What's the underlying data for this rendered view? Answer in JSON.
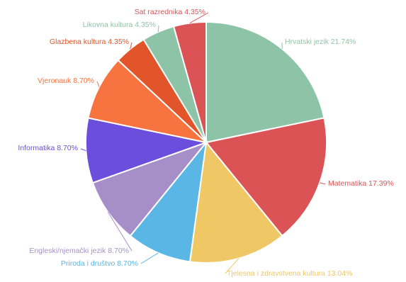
{
  "chart_data": {
    "type": "pie",
    "title": "",
    "slices": [
      {
        "label": "Hrvatski jezik",
        "value": 21.74,
        "pct_text": "21.74%",
        "color": "#8dc3a7"
      },
      {
        "label": "Matematika",
        "value": 17.39,
        "pct_text": "17.39%",
        "color": "#dc5356"
      },
      {
        "label": "Tjelesna i zdravstvena kultura",
        "value": 13.04,
        "pct_text": "13.04%",
        "color": "#efc865"
      },
      {
        "label": "Priroda i društvo",
        "value": 8.7,
        "pct_text": "8.70%",
        "color": "#5ab6e4"
      },
      {
        "label": "Engleski/njemački jezik",
        "value": 8.7,
        "pct_text": "8.70%",
        "color": "#a68fc9"
      },
      {
        "label": "Informatika",
        "value": 8.7,
        "pct_text": "8.70%",
        "color": "#6b4edb"
      },
      {
        "label": "Vjeronauk",
        "value": 8.7,
        "pct_text": "8.70%",
        "color": "#f7733f"
      },
      {
        "label": "Glazbena kultura",
        "value": 4.35,
        "pct_text": "4.35%",
        "color": "#e2542a"
      },
      {
        "label": "Likovna kultura",
        "value": 4.35,
        "pct_text": "4.35%",
        "color": "#8dc3a7"
      },
      {
        "label": "Sat razrednika",
        "value": 4.35,
        "pct_text": "4.35%",
        "color": "#dc5356"
      }
    ]
  }
}
